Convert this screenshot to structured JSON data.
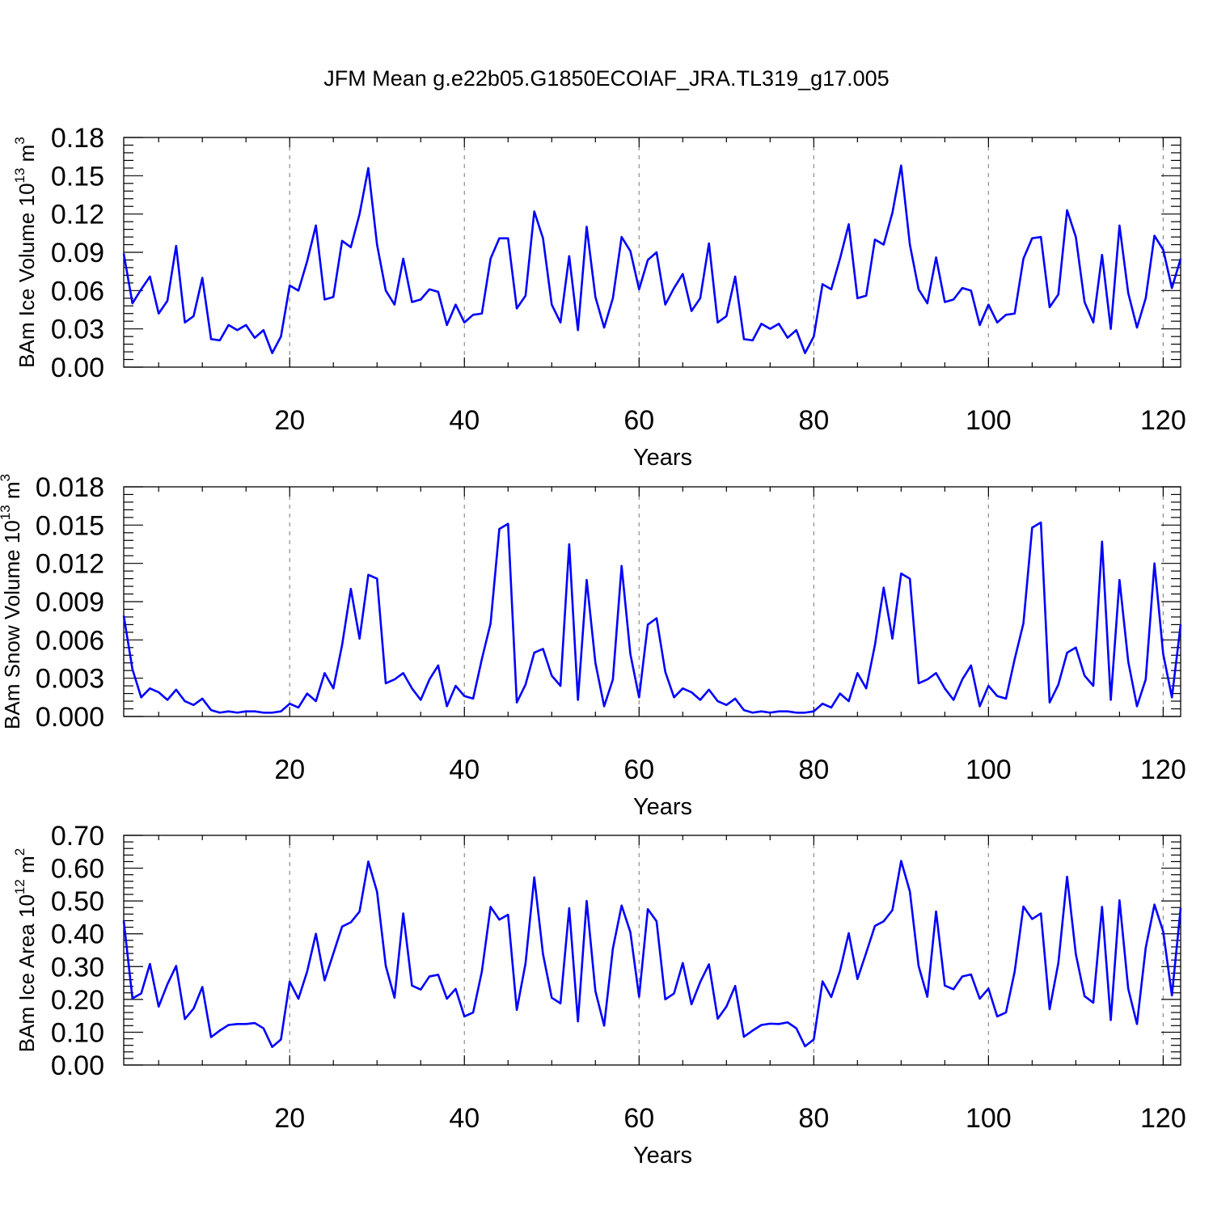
{
  "figure": {
    "title": "JFM Mean g.e22b05.G1850ECOIAF_JRA.TL319_g17.005",
    "line_color": "#0000ff"
  },
  "chart_data": [
    {
      "type": "line",
      "title": "",
      "xlabel": "Years",
      "ylabel": {
        "text": "BAm Ice Volume 10",
        "exp": "13",
        "unit": " m",
        "unit_exp": "3"
      },
      "xlim": [
        1,
        122
      ],
      "ylim": [
        0,
        0.18
      ],
      "yticks": [
        "0.00",
        "0.03",
        "0.06",
        "0.09",
        "0.12",
        "0.15",
        "0.18"
      ],
      "xticks": [
        "20",
        "40",
        "60",
        "80",
        "100",
        "120"
      ],
      "grid_x": true,
      "series": [
        {
          "values": [
            0.089,
            0.05,
            0.061,
            0.071,
            0.042,
            0.052,
            0.095,
            0.035,
            0.04,
            0.07,
            0.022,
            0.021,
            0.033,
            0.029,
            0.033,
            0.023,
            0.029,
            0.011,
            0.024,
            0.064,
            0.06,
            0.083,
            0.111,
            0.053,
            0.055,
            0.099,
            0.094,
            0.12,
            0.156,
            0.096,
            0.06,
            0.049,
            0.085,
            0.051,
            0.053,
            0.061,
            0.059,
            0.033,
            0.049,
            0.035,
            0.041,
            0.042,
            0.085,
            0.101,
            0.101,
            0.046,
            0.056,
            0.122,
            0.101,
            0.049,
            0.035,
            0.087,
            0.029,
            0.11,
            0.055,
            0.031,
            0.054,
            0.102,
            0.091,
            0.061,
            0.084,
            0.09,
            0.049,
            0.062,
            0.073,
            0.044,
            0.054,
            0.097,
            0.035,
            0.04,
            0.071,
            0.022,
            0.021,
            0.034,
            0.03,
            0.034,
            0.023,
            0.029,
            0.011,
            0.024,
            0.065,
            0.061,
            0.085,
            0.112,
            0.054,
            0.056,
            0.1,
            0.096,
            0.121,
            0.158,
            0.096,
            0.061,
            0.05,
            0.086,
            0.051,
            0.053,
            0.062,
            0.06,
            0.033,
            0.049,
            0.035,
            0.041,
            0.042,
            0.085,
            0.101,
            0.102,
            0.047,
            0.057,
            0.123,
            0.102,
            0.051,
            0.035,
            0.088,
            0.03,
            0.111,
            0.058,
            0.031,
            0.054,
            0.103,
            0.092,
            0.062,
            0.085
          ]
        }
      ]
    },
    {
      "type": "line",
      "title": "",
      "xlabel": "Years",
      "ylabel": {
        "text": "BAm Snow Volume 10",
        "exp": "13",
        "unit": " m",
        "unit_exp": "3"
      },
      "xlim": [
        1,
        122
      ],
      "ylim": [
        0,
        0.018
      ],
      "yticks": [
        "0.000",
        "0.003",
        "0.006",
        "0.009",
        "0.012",
        "0.015",
        "0.018"
      ],
      "xticks": [
        "20",
        "40",
        "60",
        "80",
        "100",
        "120"
      ],
      "grid_x": true,
      "series": [
        {
          "values": [
            0.0079,
            0.0037,
            0.0015,
            0.0022,
            0.0019,
            0.0013,
            0.0021,
            0.0012,
            0.0009,
            0.0014,
            0.0005,
            0.0003,
            0.0004,
            0.0003,
            0.0004,
            0.0004,
            0.0003,
            0.0003,
            0.0004,
            0.001,
            0.0007,
            0.0018,
            0.0012,
            0.0034,
            0.0022,
            0.0056,
            0.01,
            0.0061,
            0.0111,
            0.0108,
            0.0026,
            0.0029,
            0.0034,
            0.0022,
            0.0013,
            0.0029,
            0.004,
            0.0008,
            0.0024,
            0.0016,
            0.0014,
            0.0045,
            0.0073,
            0.0147,
            0.0151,
            0.0011,
            0.0025,
            0.005,
            0.0053,
            0.0032,
            0.0024,
            0.0135,
            0.0013,
            0.0107,
            0.0042,
            0.0008,
            0.0029,
            0.0118,
            0.0049,
            0.0015,
            0.0072,
            0.0077,
            0.0035,
            0.0015,
            0.0022,
            0.0019,
            0.0013,
            0.0021,
            0.0012,
            0.0009,
            0.0014,
            0.0005,
            0.0003,
            0.0004,
            0.0003,
            0.0004,
            0.0004,
            0.0003,
            0.0003,
            0.0004,
            0.001,
            0.0007,
            0.0018,
            0.0012,
            0.0034,
            0.0022,
            0.0056,
            0.0101,
            0.0061,
            0.0112,
            0.0108,
            0.0026,
            0.0029,
            0.0034,
            0.0022,
            0.0013,
            0.0029,
            0.004,
            0.0008,
            0.0024,
            0.0016,
            0.0014,
            0.0045,
            0.0073,
            0.0148,
            0.0152,
            0.0011,
            0.0025,
            0.005,
            0.0054,
            0.0032,
            0.0024,
            0.0137,
            0.0013,
            0.0107,
            0.0043,
            0.0008,
            0.0029,
            0.012,
            0.0049,
            0.0015,
            0.0072
          ]
        }
      ]
    },
    {
      "type": "line",
      "title": "",
      "xlabel": "Years",
      "ylabel": {
        "text": "BAm Ice Area 10",
        "exp": "12",
        "unit": " m",
        "unit_exp": "2"
      },
      "xlim": [
        1,
        122
      ],
      "ylim": [
        0,
        0.7
      ],
      "yticks": [
        "0.00",
        "0.10",
        "0.20",
        "0.30",
        "0.40",
        "0.50",
        "0.60",
        "0.70"
      ],
      "xticks": [
        "20",
        "40",
        "60",
        "80",
        "100",
        "120"
      ],
      "grid_x": true,
      "series": [
        {
          "values": [
            0.44,
            0.203,
            0.218,
            0.308,
            0.178,
            0.246,
            0.302,
            0.14,
            0.172,
            0.238,
            0.085,
            0.105,
            0.122,
            0.125,
            0.125,
            0.128,
            0.112,
            0.055,
            0.078,
            0.254,
            0.202,
            0.285,
            0.4,
            0.258,
            0.34,
            0.422,
            0.435,
            0.468,
            0.62,
            0.528,
            0.302,
            0.205,
            0.462,
            0.242,
            0.23,
            0.27,
            0.275,
            0.202,
            0.232,
            0.148,
            0.16,
            0.285,
            0.482,
            0.443,
            0.458,
            0.168,
            0.31,
            0.572,
            0.338,
            0.205,
            0.188,
            0.478,
            0.133,
            0.5,
            0.225,
            0.12,
            0.355,
            0.486,
            0.405,
            0.208,
            0.475,
            0.438,
            0.2,
            0.218,
            0.311,
            0.185,
            0.253,
            0.307,
            0.141,
            0.178,
            0.241,
            0.086,
            0.105,
            0.122,
            0.126,
            0.125,
            0.13,
            0.112,
            0.057,
            0.078,
            0.255,
            0.207,
            0.287,
            0.402,
            0.262,
            0.342,
            0.424,
            0.438,
            0.472,
            0.622,
            0.529,
            0.302,
            0.208,
            0.468,
            0.242,
            0.231,
            0.27,
            0.276,
            0.202,
            0.233,
            0.148,
            0.16,
            0.285,
            0.483,
            0.445,
            0.462,
            0.17,
            0.311,
            0.574,
            0.338,
            0.21,
            0.19,
            0.482,
            0.137,
            0.502,
            0.232,
            0.125,
            0.357,
            0.489,
            0.407,
            0.212,
            0.478
          ]
        }
      ]
    }
  ]
}
